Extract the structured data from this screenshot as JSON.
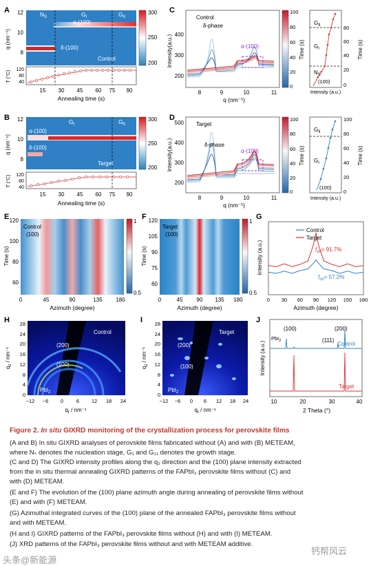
{
  "figure": {
    "panels": {
      "A": {
        "letter": "A",
        "stage_ns": "N",
        "stage_ns_sub": "S",
        "stage_g1": "G",
        "stage_g1_sub": "I",
        "stage_g2": "G",
        "stage_g2_sub": "II",
        "label_alpha": "α-(100)",
        "label_delta": "δ-(100)",
        "sample": "Control",
        "ylabel": "q (nm⁻¹)",
        "yticks": [
          "12",
          "10",
          "8"
        ],
        "cbar": [
          "300",
          "250",
          "200"
        ],
        "temp_label": "T (°C)",
        "temp_ticks": [
          "120",
          "80",
          "40"
        ],
        "xticks": [
          "15",
          "30",
          "45",
          "60",
          "75",
          "90"
        ],
        "xlabel": "Annealing time (s)"
      },
      "B": {
        "letter": "B",
        "stage_g1": "G",
        "stage_g1_sub": "I",
        "stage_g2": "G",
        "stage_g2_sub": "II",
        "label_alpha": "α-(100)",
        "label_delta": "δ-(100)",
        "sample": "Target",
        "ylabel": "q (nm⁻¹)",
        "yticks": [
          "12",
          "10",
          "8"
        ],
        "cbar": [
          "300",
          "250",
          "200"
        ],
        "temp_label": "T (°C)",
        "temp_ticks": [
          "120",
          "80",
          "40"
        ],
        "xticks": [
          "15",
          "30",
          "45",
          "60",
          "75",
          "90"
        ],
        "xlabel": "Annealing time (s)"
      },
      "C": {
        "letter": "C",
        "sample": "Control",
        "label_delta": "δ-phase",
        "label_alpha": "α-(100)",
        "ylabel": "Intensity(a.u.)",
        "yticks": [
          "400",
          "300",
          "200"
        ],
        "xticks": [
          "8",
          "9",
          "10",
          "11"
        ],
        "xlabel": "q (nm⁻¹)",
        "cbar": [
          "100",
          "80",
          "60",
          "40",
          "20",
          "0"
        ],
        "cbar_label": "Time (s)",
        "side_g2": "G",
        "side_g2_sub": "II",
        "side_g1": "G",
        "side_g1_sub": "I",
        "side_ns": "N",
        "side_ns_sub": "S",
        "side_tag": "(100)",
        "side_xlabel": "Intensity (a.u.)",
        "side_yticks": [
          "80",
          "60",
          "40",
          "20",
          "0"
        ],
        "side_ylabel": "Time (s)"
      },
      "D": {
        "letter": "D",
        "sample": "Target",
        "label_delta": "δ-phase",
        "label_alpha": "α-(100)",
        "ylabel": "Intensity(a.u.)",
        "yticks": [
          "500",
          "400",
          "300",
          "200"
        ],
        "xticks": [
          "8",
          "9",
          "10",
          "11"
        ],
        "xlabel": "q (nm⁻¹)",
        "cbar": [
          "100",
          "80",
          "60",
          "40",
          "20",
          "0"
        ],
        "cbar_label": "Time (s)",
        "side_g2": "G",
        "side_g2_sub": "II",
        "side_g1": "G",
        "side_g1_sub": "I",
        "side_tag": "(100)",
        "side_xlabel": "Intensity (a.u.)",
        "side_yticks": [
          "100",
          "80",
          "60",
          "40",
          "20",
          "0"
        ],
        "side_ylabel": "Time (s)"
      },
      "E": {
        "letter": "E",
        "sample": "Control",
        "tag": "(100)",
        "ylabel": "Time (s)",
        "yticks": [
          "120",
          "100",
          "80",
          "60"
        ],
        "xticks": [
          "0",
          "45",
          "90",
          "135",
          "180"
        ],
        "xlabel": "Azimuth (degree)",
        "cbar": [
          "1",
          "0.5"
        ]
      },
      "F": {
        "letter": "F",
        "sample": "Target",
        "tag": "(100)",
        "ylabel": "Time (s)",
        "yticks": [
          "120",
          "105",
          "90",
          "75",
          "60"
        ],
        "xticks": [
          "0",
          "45",
          "90",
          "135",
          "180"
        ],
        "xlabel": "Azimuth (degree)",
        "cbar": [
          "1",
          "0.5"
        ]
      },
      "G": {
        "letter": "G",
        "legend_control": "Control",
        "legend_target": "Target",
        "ylabel": "Intensity (a.u.)",
        "fori_target": "= 91.7%",
        "fori_control": "= 57.2%",
        "fori": "f",
        "fori_sub": "ori",
        "xticks": [
          "0",
          "30",
          "60",
          "90",
          "120",
          "150",
          "180"
        ],
        "xlabel": "Azimuth (degree)"
      },
      "H": {
        "letter": "H",
        "sample": "Control",
        "ring_200": "(200)",
        "ring_100": "(100)",
        "pbi2": "PbI",
        "pbi2_sub": "2",
        "ylabel": "q",
        "ylabel_sub": "z",
        "ylabel_unit": " / nm⁻¹",
        "xlabel": "q",
        "xlabel_sub": "r",
        "xlabel_unit": " / nm⁻¹",
        "yticks": [
          "28",
          "24",
          "20",
          "16",
          "12",
          "8",
          "4",
          "0"
        ],
        "xticks": [
          "−12",
          "−6",
          "0",
          "6",
          "12",
          "18",
          "24"
        ]
      },
      "I": {
        "letter": "I",
        "sample": "Target",
        "ring_200": "(200)",
        "ring_100": "(100)",
        "pbi2": "PbI",
        "pbi2_sub": "2",
        "ylabel": "q",
        "ylabel_sub": "z",
        "ylabel_unit": " / nm⁻¹",
        "xlabel": "q",
        "xlabel_sub": "r",
        "xlabel_unit": " / nm⁻¹",
        "yticks": [
          "28",
          "24",
          "20",
          "16",
          "12",
          "8",
          "4",
          "0"
        ],
        "xticks": [
          "−12",
          "−6",
          "0",
          "6",
          "12",
          "18",
          "24"
        ]
      },
      "J": {
        "letter": "J",
        "peak_100": "(100)",
        "peak_111": "(111)",
        "peak_200": "(200)",
        "pbi2": "PbI",
        "pbi2_sub": "2",
        "legend_control": "Control",
        "legend_target": "Target",
        "ylabel": "Intensity (a.u.)",
        "xticks": [
          "10",
          "20",
          "30",
          "40"
        ],
        "xlabel": "2 Theta (°)"
      }
    }
  },
  "caption": {
    "title_prefix": "Figure 2.",
    "title_italic": "In situ",
    "title_rest": " GIXRD monitoring of the crystallization process for perovskite films",
    "lines": [
      "(A and B) In situ GIXRD analyses of perovskite films fabricated without (A) and with (B) METEAM,",
      "where Nₛ denotes the nucleation stage, G₁ and G₁₁ denotes the growth stage.",
      "(C and D) The GIXRD intensity profiles along the q₂ direction and the (100) plane intensity extracted",
      "from the in situ thermal annealing GIXRD patterns of the FAPbI₃ perovskite films without (C) and",
      "with (D) METEAM.",
      "(E and F) The evolution of the (100) plane azimuth angle during annealing of perovskite films without",
      "(E) and with (F) METEAM.",
      "(G) Azimuthal integrated curves of the (100) plane of the annealed FAPbI₃ perovskite films without",
      "and with METEAM.",
      "(H and I) GIXRD patterns of the FAPbI₃ perovskite films without (H) and with (I) METEAM.",
      "(J) XRD patterns of the FAPbI₃ perovskite films without and with METEAM additive."
    ]
  },
  "watermarks": {
    "left": "头条@新能源",
    "right": "钙帮风云"
  },
  "chart_data": [
    {
      "panel": "G",
      "type": "line",
      "xlabel": "Azimuth (degree)",
      "ylabel": "Intensity (a.u.)",
      "xlim": [
        0,
        180
      ],
      "series": [
        {
          "name": "Control",
          "x": [
            0,
            15,
            30,
            45,
            60,
            75,
            85,
            90,
            95,
            105,
            120,
            135,
            150,
            165,
            180
          ],
          "values": [
            0.3,
            0.28,
            0.32,
            0.28,
            0.33,
            0.36,
            0.46,
            0.52,
            0.46,
            0.36,
            0.33,
            0.28,
            0.32,
            0.28,
            0.3
          ]
        },
        {
          "name": "Target",
          "x": [
            0,
            15,
            30,
            45,
            60,
            75,
            85,
            90,
            95,
            105,
            120,
            135,
            150,
            165,
            180
          ],
          "values": [
            0.42,
            0.4,
            0.45,
            0.4,
            0.44,
            0.5,
            0.78,
            1.0,
            0.78,
            0.5,
            0.44,
            0.4,
            0.45,
            0.4,
            0.42
          ]
        }
      ]
    },
    {
      "panel": "J",
      "type": "line",
      "xlabel": "2 Theta (°)",
      "ylabel": "Intensity (a.u.)",
      "xlim": [
        10,
        40
      ],
      "series": [
        {
          "name": "Control",
          "x": [
            12.7,
            13.9,
            24.4,
            28.0
          ],
          "values": [
            0.15,
            0.35,
            0.05,
            0.45
          ]
        },
        {
          "name": "Target",
          "x": [
            13.9,
            28.0
          ],
          "values": [
            1.0,
            1.0
          ]
        }
      ]
    }
  ]
}
